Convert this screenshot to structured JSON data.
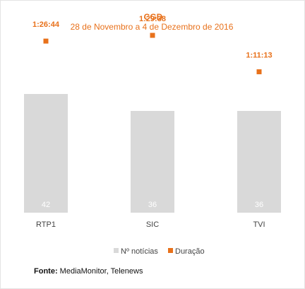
{
  "chart_data": {
    "type": "bar",
    "title": "CGD",
    "subtitle": "28 de Novembro a 4 de Dezembro de 2016",
    "categories": [
      "RTP1",
      "SIC",
      "TVI"
    ],
    "series": [
      {
        "name": "Nº notícias",
        "type": "bar",
        "values": [
          42,
          36,
          36
        ],
        "color": "#d9d9d9"
      },
      {
        "name": "Duração",
        "type": "point",
        "values": [
          "1:26:44",
          "1:29:38",
          "1:11:13"
        ],
        "color": "#e8711b"
      }
    ],
    "bar_axis_range": [
      0,
      70
    ],
    "duration_axis_range_seconds": [
      0,
      6000
    ],
    "grid": false,
    "legend": "bottom-center"
  },
  "source": {
    "label": "Fonte:",
    "text": " MediaMonitor, Telenews"
  }
}
